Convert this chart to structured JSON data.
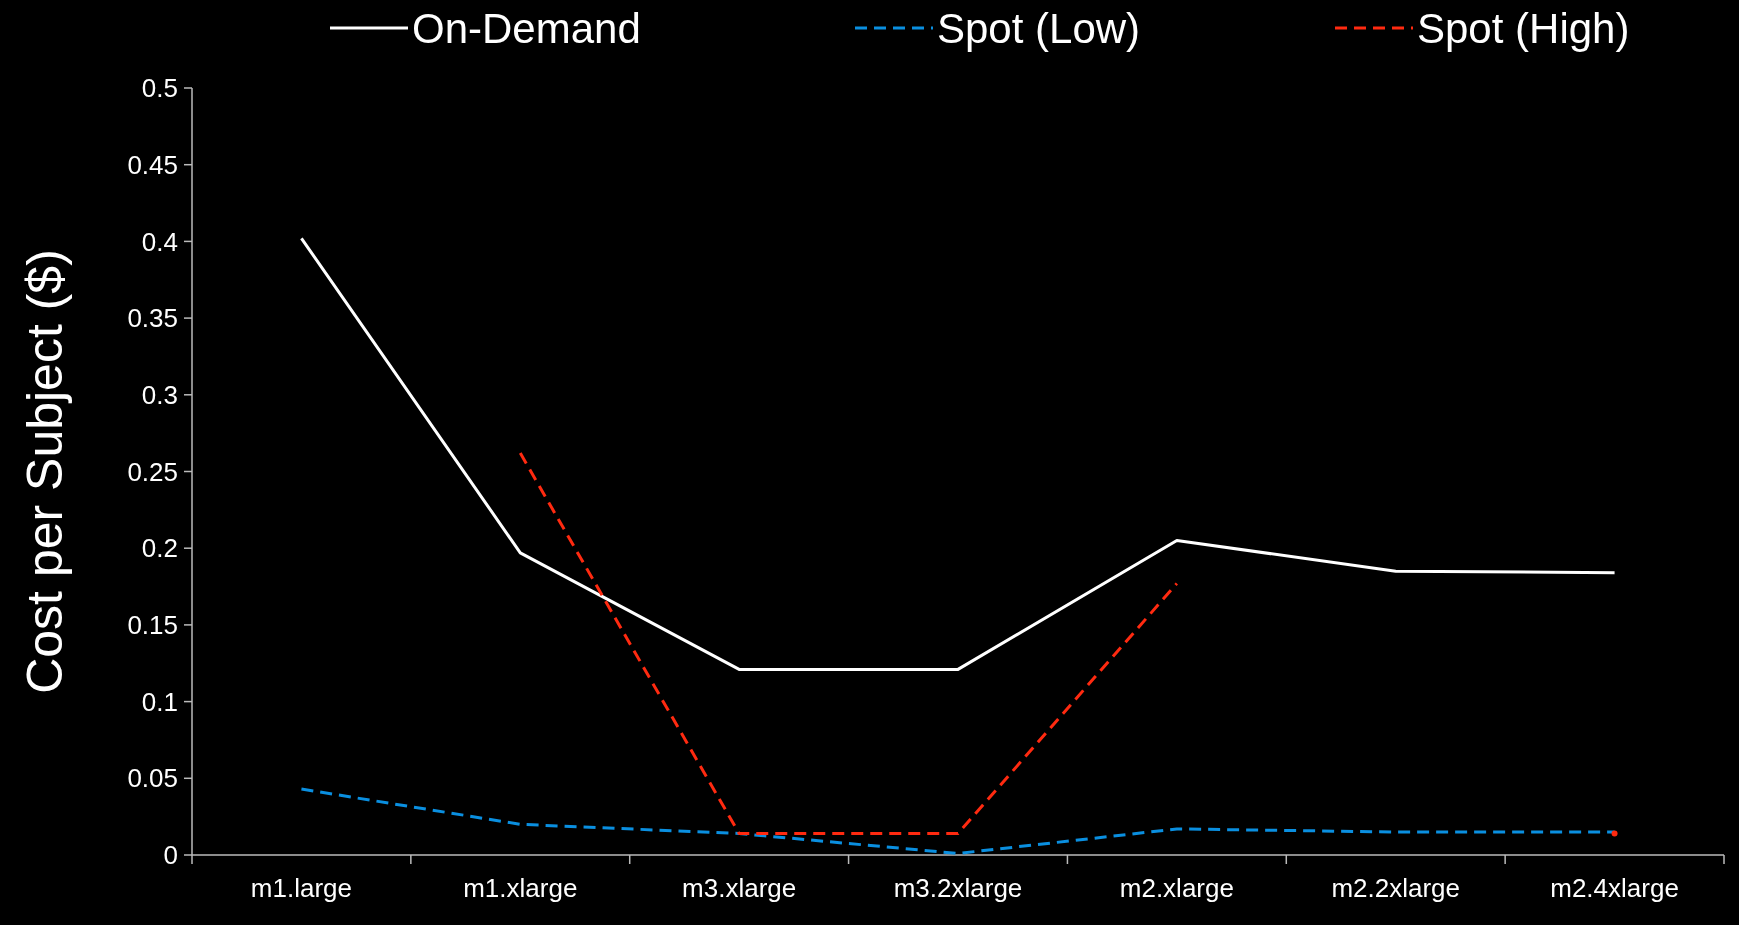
{
  "chart_data": {
    "type": "line",
    "ylabel": "Cost per Subject ($)",
    "categories": [
      "m1.large",
      "m1.xlarge",
      "m3.xlarge",
      "m3.2xlarge",
      "m2.xlarge",
      "m2.2xlarge",
      "m2.4xlarge"
    ],
    "series": [
      {
        "name": "On-Demand",
        "color": "#ffffff",
        "line_style": "solid",
        "values": [
          0.402,
          0.197,
          0.121,
          0.121,
          0.205,
          0.185,
          0.184
        ]
      },
      {
        "name": "Spot (Low)",
        "color": "#0a8fe0",
        "line_style": "dashed",
        "values": [
          0.043,
          0.02,
          0.014,
          0.001,
          0.017,
          0.015,
          0.015
        ]
      },
      {
        "name": "Spot (High)",
        "color": "#ff2a10",
        "line_style": "dashed",
        "values": [
          null,
          0.262,
          0.014,
          0.014,
          0.177,
          null,
          0.014
        ]
      }
    ],
    "ylim": [
      0,
      0.5
    ],
    "yticks": [
      0,
      0.05,
      0.1,
      0.15,
      0.2,
      0.25,
      0.3,
      0.35,
      0.4,
      0.45,
      0.5
    ],
    "grid": false,
    "legend": "top",
    "marker": "none"
  }
}
